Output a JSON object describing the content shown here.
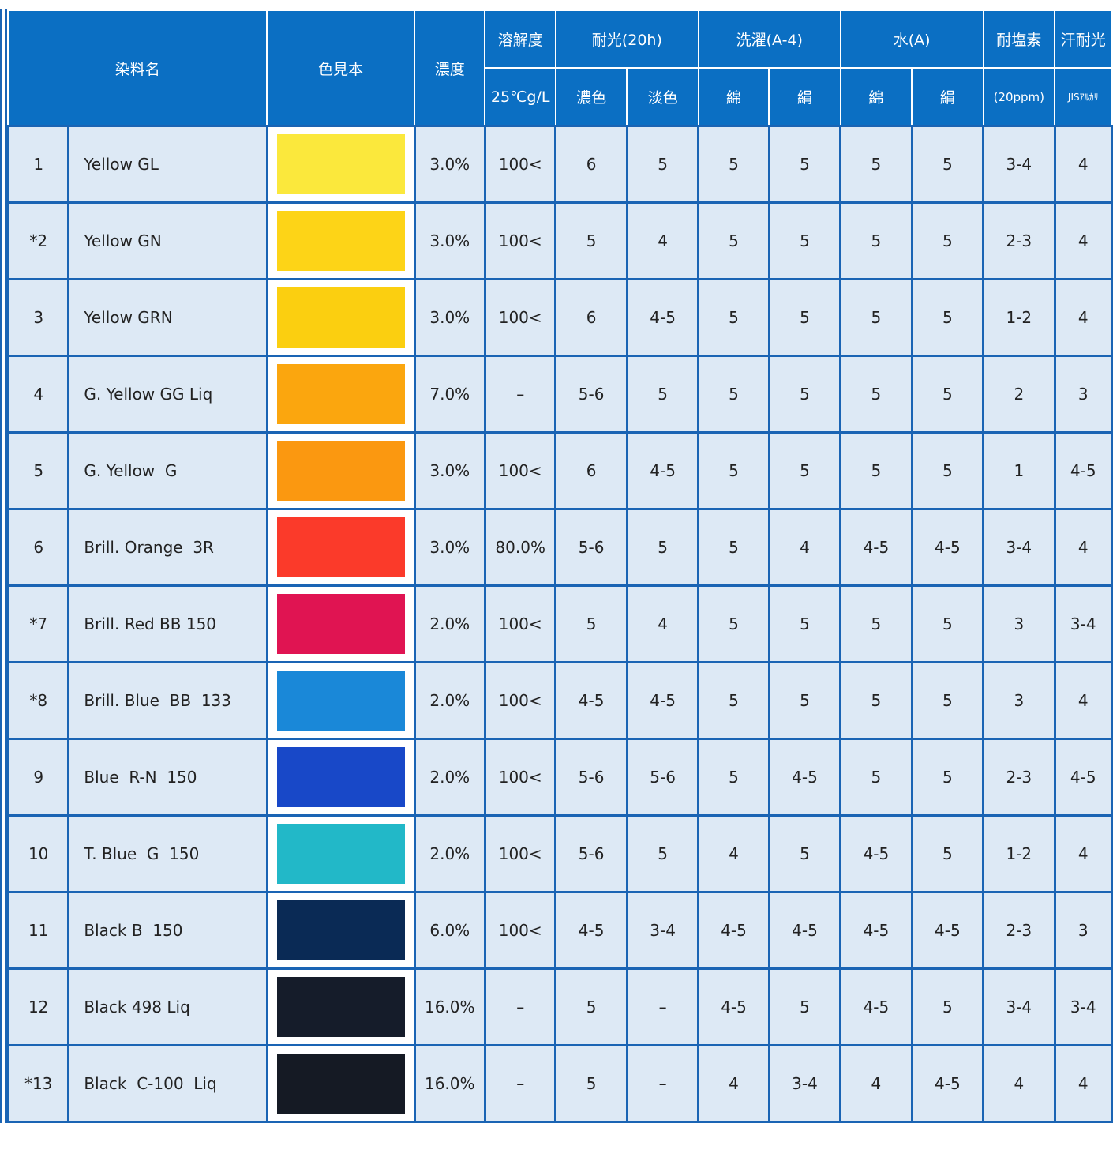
{
  "table": {
    "header_top": [
      "染料名",
      "色見本",
      "濃度",
      "溶解度",
      "耐光(20h)",
      "洗濯(A-4)",
      "水(A)",
      "耐塩素",
      "汗耐光"
    ],
    "header_bottom": [
      "25℃g/L",
      "濃色",
      "淡色",
      "綿",
      "絹",
      "綿",
      "絹",
      "(20ppm)",
      "JISｱﾙｶﾘ"
    ],
    "rows": [
      [
        "1",
        "Yellow GL",
        "3.0%",
        "100<",
        "6",
        "5",
        "5",
        "5",
        "5",
        "5",
        "3-4",
        "4"
      ],
      [
        "*2",
        "Yellow GN",
        "3.0%",
        "100<",
        "5",
        "4",
        "5",
        "5",
        "5",
        "5",
        "2-3",
        "4"
      ],
      [
        "3",
        "Yellow GRN",
        "3.0%",
        "100<",
        "6",
        "4-5",
        "5",
        "5",
        "5",
        "5",
        "1-2",
        "4"
      ],
      [
        "4",
        "G. Yellow GG Liq",
        "7.0%",
        "–",
        "5-6",
        "5",
        "5",
        "5",
        "5",
        "5",
        "2",
        "3"
      ],
      [
        "5",
        "G. Yellow  G",
        "3.0%",
        "100<",
        "6",
        "4-5",
        "5",
        "5",
        "5",
        "5",
        "1",
        "4-5"
      ],
      [
        "6",
        "Brill. Orange  3R",
        "3.0%",
        "80.0%",
        "5-6",
        "5",
        "5",
        "4",
        "4-5",
        "4-5",
        "3-4",
        "4"
      ],
      [
        "*7",
        "Brill. Red BB 150",
        "2.0%",
        "100<",
        "5",
        "4",
        "5",
        "5",
        "5",
        "5",
        "3",
        "3-4"
      ],
      [
        "*8",
        "Brill. Blue  BB  133",
        "2.0%",
        "100<",
        "4-5",
        "4-5",
        "5",
        "5",
        "5",
        "5",
        "3",
        "4"
      ],
      [
        "9",
        "Blue  R-N  150",
        "2.0%",
        "100<",
        "5-6",
        "5-6",
        "5",
        "4-5",
        "5",
        "5",
        "2-3",
        "4-5"
      ],
      [
        "10",
        "T. Blue  G  150",
        "2.0%",
        "100<",
        "5-6",
        "5",
        "4",
        "5",
        "4-5",
        "5",
        "1-2",
        "4"
      ],
      [
        "11",
        "Black B  150",
        "6.0%",
        "100<",
        "4-5",
        "3-4",
        "4-5",
        "4-5",
        "4-5",
        "4-5",
        "2-3",
        "3"
      ],
      [
        "12",
        "Black 498 Liq",
        "16.0%",
        "–",
        "5",
        "–",
        "4-5",
        "5",
        "4-5",
        "5",
        "3-4",
        "3-4"
      ],
      [
        "*13",
        "Black  C-100  Liq",
        "16.0%",
        "–",
        "5",
        "–",
        "4",
        "3-4",
        "4",
        "4-5",
        "4",
        "4"
      ]
    ],
    "swatches": [
      "#fbe83c",
      "#fdd417",
      "#fbcf10",
      "#fba60e",
      "#fb9810",
      "#fb3a2a",
      "#e01452",
      "#1a88d8",
      "#1848c8",
      "#22b8c8",
      "#0a2a55",
      "#151c2a",
      "#151a24"
    ]
  }
}
